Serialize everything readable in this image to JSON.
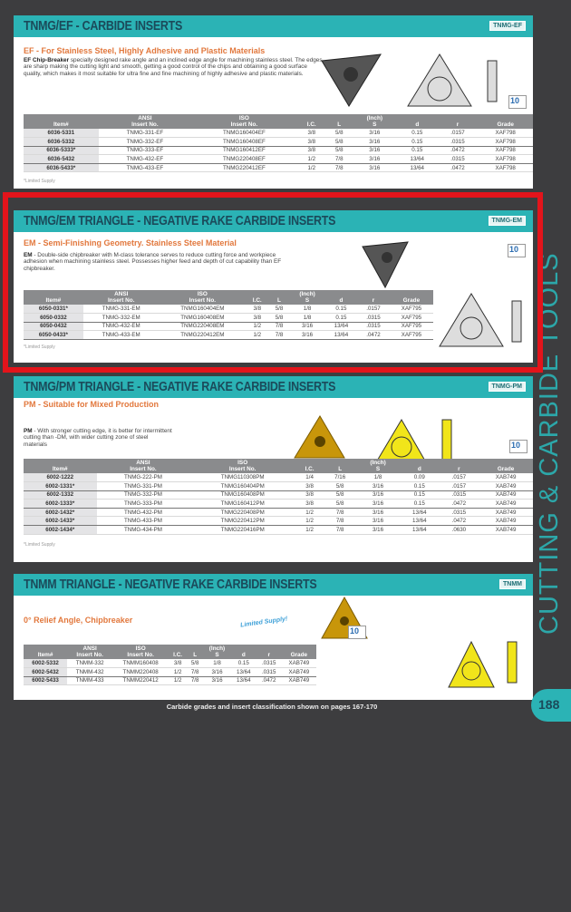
{
  "sidebar_text": "CUTTING & CARBIDE TOOLS",
  "footer": "Carbide grades and insert classification shown on pages 167-170",
  "page_number": "188",
  "colors": {
    "header": "#2bb3b5",
    "subtitle": "#e2783d",
    "highlight_frame": "#e3141b",
    "table_header": "#8a8b8d"
  },
  "package_label": "10",
  "headers": {
    "item": "Item#",
    "ansi": "ANSI",
    "ansi2": "Insert No.",
    "iso": "ISO",
    "iso2": "Insert No.",
    "ic": "I.C.",
    "l": "L",
    "inch": "(Inch)",
    "s": "S",
    "d": "d",
    "r": "r",
    "grade": "Grade"
  },
  "sections": [
    {
      "title": "TNMG/EF - CARBIDE INSERTS",
      "tag": "TNMG-EF",
      "subtitle": "EF - For Stainless Steel, Highly Adhesive and Plastic Materials",
      "desc_lead": "EF Chip-Breaker",
      "desc": " specially designed rake angle and an inclined edge angle for machining stainless steel. The edges are sharp making the cutting light and smooth, getting a good control of the chips and obtaining a good surface quality, which makes it most suitable for ultra fine and fine machining of highly adhesive and plastic materials.",
      "note": "*Limited Supply",
      "rows": [
        [
          "6036-5331",
          "TNMG-331-EF",
          "TNMG160404EF",
          "3/8",
          "5/8",
          "3/16",
          "0.15",
          ".0157",
          "XAF798"
        ],
        [
          "6036-5332",
          "TNMG-332-EF",
          "TNMG160408EF",
          "3/8",
          "5/8",
          "3/16",
          "0.15",
          ".0315",
          "XAF798"
        ],
        [
          "6036-5333*",
          "TNMG-333-EF",
          "TNMG160412EF",
          "3/8",
          "5/8",
          "3/16",
          "0.15",
          ".0472",
          "XAF798"
        ],
        [
          "6036-5432",
          "TNMG-432-EF",
          "TNMG220408EF",
          "1/2",
          "7/8",
          "3/16",
          "13/64",
          ".0315",
          "XAF798"
        ],
        [
          "6036-5433*",
          "TNMG-433-EF",
          "TNMG220412EF",
          "1/2",
          "7/8",
          "3/16",
          "13/64",
          ".0472",
          "XAF798"
        ]
      ]
    },
    {
      "title": "TNMG/EM TRIANGLE - NEGATIVE RAKE CARBIDE INSERTS",
      "tag": "TNMG-EM",
      "subtitle": "EM - Semi-Finishing Geometry. Stainless Steel Material",
      "desc_lead": "EM",
      "desc": " - Double-side chipbreaker with M-class tolerance serves to reduce cutting force and workpiece adhesion when machining stainless steel. Possesses higher feed and depth of cut capability than EF chipbreaker.",
      "note": "*Limited Supply",
      "rows": [
        [
          "6050-0331*",
          "TNMG-331-EM",
          "TNMG160404EM",
          "3/8",
          "5/8",
          "1/8",
          "0.15",
          ".0157",
          "XAF795"
        ],
        [
          "6050-0332",
          "TNMG-332-EM",
          "TNMG160408EM",
          "3/8",
          "5/8",
          "1/8",
          "0.15",
          ".0315",
          "XAF795"
        ],
        [
          "6050-0432",
          "TNMG-432-EM",
          "TNMG220408EM",
          "1/2",
          "7/8",
          "3/16",
          "13/64",
          ".0315",
          "XAF795"
        ],
        [
          "6050-0433*",
          "TNMG-433-EM",
          "TNMG220412EM",
          "1/2",
          "7/8",
          "3/16",
          "13/64",
          ".0472",
          "XAF795"
        ]
      ]
    },
    {
      "title": "TNMG/PM TRIANGLE - NEGATIVE RAKE CARBIDE INSERTS",
      "tag": "TNMG-PM",
      "subtitle": "PM - Suitable for Mixed Production",
      "desc_lead": "PM",
      "desc": " - With stronger cutting edge, it is better for intermittent cutting than -DM, with wider cutting zone of steel materials",
      "note": "*Limited Supply",
      "rows": [
        [
          "6002-1222",
          "TNMG-222-PM",
          "TNMG110308PM",
          "1/4",
          "7/16",
          "1/8",
          "0.09",
          ".0157",
          "XAB749"
        ],
        [
          "6002-1331*",
          "TNMG-331-PM",
          "TNMG160404PM",
          "3/8",
          "5/8",
          "3/16",
          "0.15",
          ".0157",
          "XAB749"
        ],
        [
          "6002-1332",
          "TNMG-332-PM",
          "TNMG160408PM",
          "3/8",
          "5/8",
          "3/16",
          "0.15",
          ".0315",
          "XAB749"
        ],
        [
          "6002-1333*",
          "TNMG-333-PM",
          "TNMG160412PM",
          "3/8",
          "5/8",
          "3/16",
          "0.15",
          ".0472",
          "XAB749"
        ],
        [
          "6002-1432*",
          "TNMG-432-PM",
          "TNMG220408PM",
          "1/2",
          "7/8",
          "3/16",
          "13/64",
          ".0315",
          "XAB749"
        ],
        [
          "6002-1433*",
          "TNMG-433-PM",
          "TNMG220412PM",
          "1/2",
          "7/8",
          "3/16",
          "13/64",
          ".0472",
          "XAB749"
        ],
        [
          "6002-1434*",
          "TNMG-434-PM",
          "TNMG220416PM",
          "1/2",
          "7/8",
          "3/16",
          "13/64",
          ".0630",
          "XAB749"
        ]
      ]
    },
    {
      "title": "TNMM TRIANGLE - NEGATIVE RAKE CARBIDE INSERTS",
      "tag": "TNMM",
      "subtitle": "0° Relief Angle, Chipbreaker",
      "limited": "Limited Supply!",
      "rows": [
        [
          "6002-5332",
          "TNMM-332",
          "TNMM160408",
          "3/8",
          "5/8",
          "1/8",
          "0.15",
          ".0315",
          "XAB749"
        ],
        [
          "6002-5432",
          "TNMM-432",
          "TNMM220408",
          "1/2",
          "7/8",
          "3/16",
          "13/64",
          ".0315",
          "XAB749"
        ],
        [
          "6002-5433",
          "TNMM-433",
          "TNMM220412",
          "1/2",
          "7/8",
          "3/16",
          "13/64",
          ".0472",
          "XAB749"
        ]
      ]
    }
  ]
}
